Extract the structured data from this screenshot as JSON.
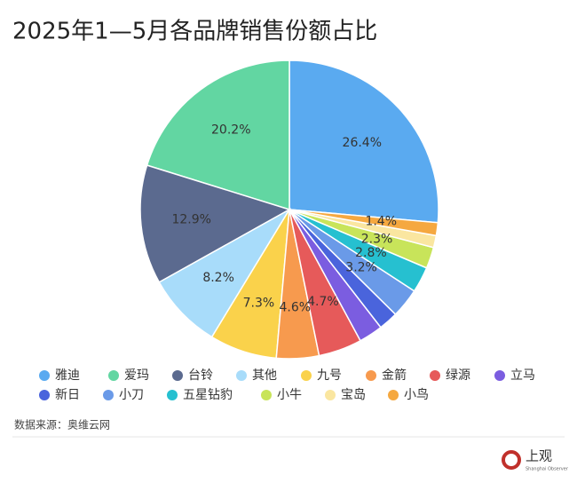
{
  "chart_data": {
    "type": "pie",
    "title": "2025年1—5月各品牌销售份额占比",
    "categories": [
      "雅迪",
      "爱玛",
      "台铃",
      "其他",
      "九号",
      "金箭",
      "绿源",
      "立马",
      "新日",
      "小刀",
      "五星钻豹",
      "小牛",
      "宝岛",
      "小鸟"
    ],
    "values": [
      26.4,
      20.2,
      12.9,
      8.2,
      7.3,
      4.6,
      4.7,
      2.6,
      2.1,
      3.2,
      2.8,
      2.3,
      1.3,
      1.4
    ],
    "value_labels": [
      "26.4%",
      "20.2%",
      "12.9%",
      "8.2%",
      "7.3%",
      "4.6%",
      "4.7%",
      null,
      null,
      "3.2%",
      "2.8%",
      "2.3%",
      null,
      "1.4%"
    ],
    "colors": [
      "#5aaaf0",
      "#62d6a2",
      "#5b6a8f",
      "#a8dcfa",
      "#fad24b",
      "#f79a4e",
      "#e65a5a",
      "#7b5de0",
      "#4a64dc",
      "#6a9ae8",
      "#26c0d0",
      "#c8e45a",
      "#fae6a0",
      "#f5a840"
    ],
    "source": "数据来源：奥维云网",
    "logo": {
      "name": "上观",
      "subtitle": "Shanghai Observer"
    }
  }
}
